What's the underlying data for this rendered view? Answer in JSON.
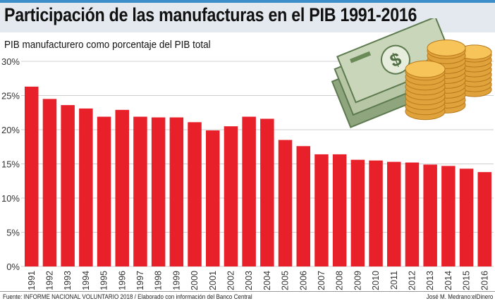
{
  "header": {
    "title": "Participación de las manufacturas en el PIB 1991-2016"
  },
  "footer": {
    "source": "Fuente: INFORME NACIONAL VOLUNTARIO 2018 / Elaborado con información del Banco Central",
    "credit": "José M. Medrano:elDinero"
  },
  "illustration": {
    "icon": "money-bills-and-coins-icon"
  },
  "colors": {
    "bar": "#e8202a",
    "accent": "#3d8fc9"
  },
  "chart_data": {
    "type": "bar",
    "title": "Participación de las manufacturas en el PIB 1991-2016",
    "subtitle": "PIB manufacturero como porcentaje del PIB total",
    "xlabel": "",
    "ylabel": "",
    "ylim": [
      0,
      30
    ],
    "yticks": [
      "0%",
      "5%",
      "10%",
      "15%",
      "20%",
      "25%",
      "30%"
    ],
    "grid": true,
    "categories": [
      "1991",
      "1992",
      "1993",
      "1994",
      "1995",
      "1996",
      "1997",
      "1998",
      "1999",
      "2000",
      "2001",
      "2002",
      "2003",
      "2004",
      "2005",
      "2006",
      "2007",
      "2008",
      "2009",
      "2010",
      "2011",
      "2012",
      "2013",
      "2014",
      "2015",
      "2016"
    ],
    "values": [
      26.3,
      24.5,
      23.6,
      23.1,
      21.9,
      22.9,
      21.9,
      21.8,
      21.8,
      21.1,
      19.9,
      20.5,
      21.9,
      21.6,
      18.5,
      17.6,
      16.4,
      16.4,
      15.6,
      15.5,
      15.3,
      15.2,
      14.9,
      14.7,
      14.3,
      13.8
    ]
  }
}
